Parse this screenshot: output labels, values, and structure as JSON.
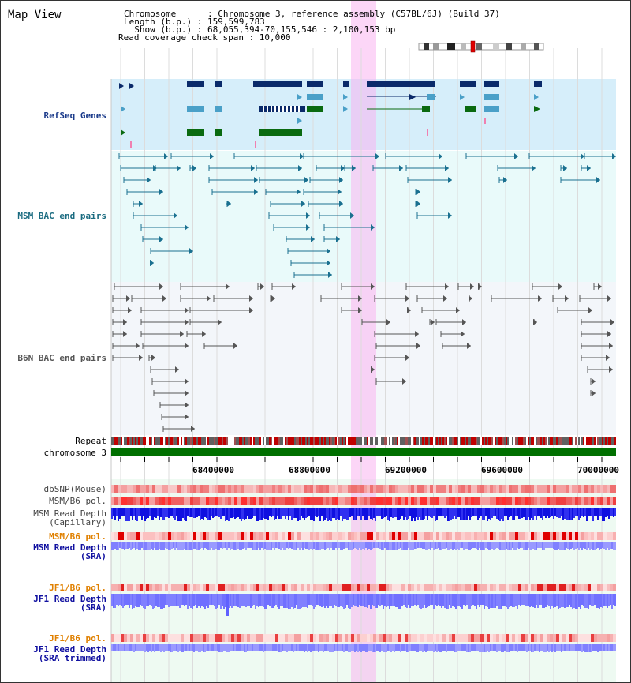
{
  "title": "Map View",
  "info": {
    "chromosome_line": "Chromosome      : Chromosome 3, reference assembly (C57BL/6J) (Build 37)",
    "length_line": "Length (b.p.) : 159,599,783",
    "show_line": "  Show (b.p.) : 68,055,394-70,155,546 : 2,100,153 bp",
    "coverage_line": "Read coverage check span : 10,000"
  },
  "tracks": {
    "refseq": {
      "label": "RefSeq Genes",
      "color": "#1a3a8a"
    },
    "msm_bac": {
      "label": "MSM BAC end pairs",
      "color": "#1a6b80"
    },
    "b6n_bac": {
      "label": "B6N BAC end pairs",
      "color": "#555555"
    },
    "repeat": {
      "label": "Repeat"
    },
    "chromosome": {
      "label": "chromosome 3",
      "color": "#007000"
    },
    "dbsnp": {
      "label": "dbSNP(Mouse)"
    },
    "msm_b6_pol": {
      "label": "MSM/B6 pol."
    },
    "msm_depth_cap": {
      "label": "MSM Read Depth\n(Capillary)"
    },
    "msm_b6_pol_2": {
      "label": "MSM/B6 pol.",
      "color": "#e08000"
    },
    "msm_depth_sra": {
      "label": "MSM Read Depth\n(SRA)",
      "color": "#1010a0"
    },
    "jf1_b6_pol": {
      "label": "JF1/B6 pol.",
      "color": "#e08000"
    },
    "jf1_depth_sra": {
      "label": "JF1 Read Depth\n(SRA)",
      "color": "#1010a0"
    },
    "jf1_b6_pol_2": {
      "label": "JF1/B6 pol.",
      "color": "#e08000"
    },
    "jf1_depth_trim": {
      "label": "JF1 Read Depth\n(SRA trimmed)",
      "color": "#1010a0"
    }
  },
  "axis": {
    "ticks": [
      "68400000",
      "68800000",
      "69200000",
      "69600000",
      "70000000"
    ]
  },
  "colors": {
    "refseq_dark": "#0a2a6a",
    "refseq_mid": "#4aa0c8",
    "refseq_green": "#0a6a10",
    "msm_line": "#1a7090",
    "b6n_line": "#555555",
    "highlight": "#f8c0f0",
    "depth_dark": "#1818e0",
    "depth_light": "#8080ff"
  }
}
